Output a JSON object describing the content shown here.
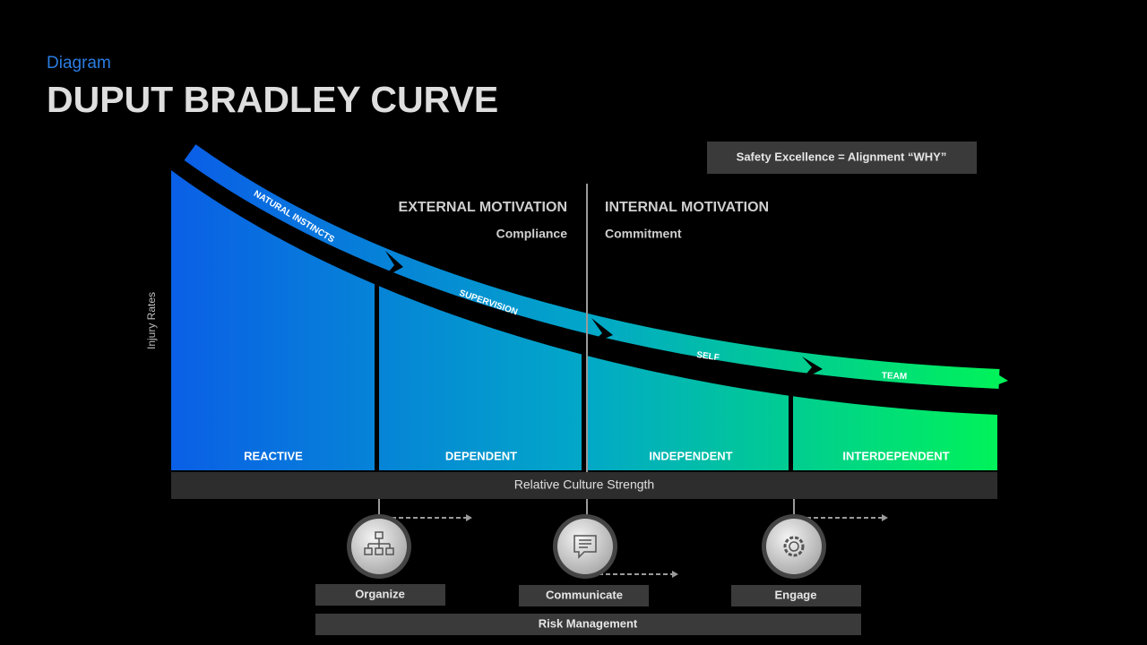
{
  "header": {
    "subtitle": "Diagram",
    "title": "DUPUT BRADLEY CURVE"
  },
  "callout": "Safety Excellence = Alignment “WHY”",
  "axis": {
    "y_label": "Injury Rates",
    "x_label": "Relative Culture Strength"
  },
  "motivation": [
    {
      "title": "EXTERNAL MOTIVATION",
      "subtitle": "Compliance"
    },
    {
      "title": "INTERNAL MOTIVATION",
      "subtitle": "Commitment"
    }
  ],
  "arrows": [
    "NATURAL INSTINCTS",
    "SUPERVISION",
    "SELF",
    "TEAM"
  ],
  "stages": [
    "REACTIVE",
    "DEPENDENT",
    "INDEPENDENT",
    "INTERDEPENDENT"
  ],
  "actions": [
    "Organize",
    "Communicate",
    "Engage"
  ],
  "footer": "Risk Management"
}
